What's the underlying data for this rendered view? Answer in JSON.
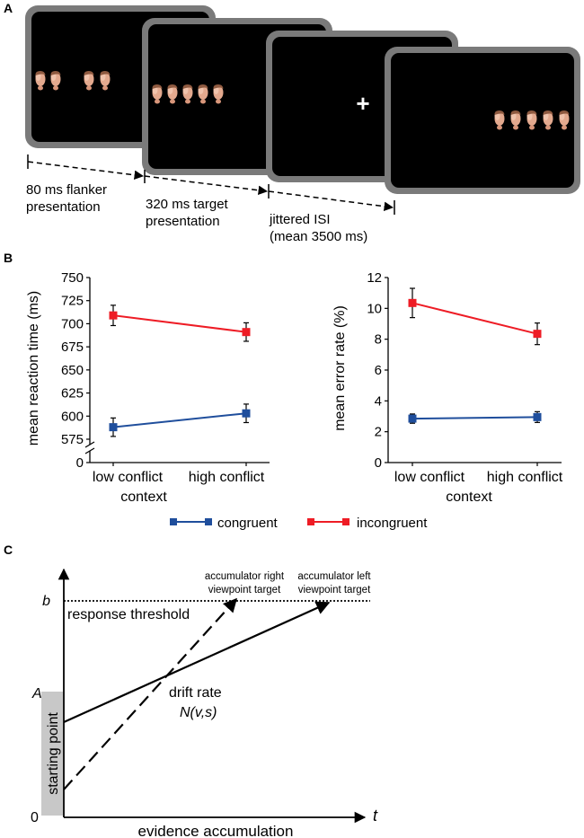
{
  "panels": {
    "a": {
      "letter": "A"
    },
    "b": {
      "letter": "B"
    },
    "c": {
      "letter": "C"
    }
  },
  "paradigm": {
    "fixation_cross": "+",
    "timeline_labels": [
      [
        "80 ms flanker",
        "presentation"
      ],
      [
        "320 ms target",
        "presentation"
      ],
      [
        "jittered ISI",
        "(mean 3500 ms)"
      ]
    ],
    "screen_color": "#000000",
    "screen_frame_color": "#7a7a7a"
  },
  "chart_data": [
    {
      "type": "line",
      "categories": [
        "low conflict",
        "high conflict"
      ],
      "xlabel": "context",
      "ylabel": "mean reaction time (ms)",
      "ylim": [
        575,
        750
      ],
      "axis_break": true,
      "yticks": [
        0,
        575,
        600,
        625,
        650,
        675,
        700,
        725,
        750
      ],
      "series": [
        {
          "name": "congruent",
          "values": [
            588,
            603
          ],
          "errors": [
            10,
            10
          ],
          "color": "#1f4e9c"
        },
        {
          "name": "incongruent",
          "values": [
            709,
            691
          ],
          "errors": [
            11,
            10
          ],
          "color": "#ee1c25"
        }
      ]
    },
    {
      "type": "line",
      "categories": [
        "low conflict",
        "high conflict"
      ],
      "xlabel": "context",
      "ylabel": "mean error rate (%)",
      "ylim": [
        0,
        12
      ],
      "yticks": [
        0,
        2,
        4,
        6,
        8,
        10,
        12
      ],
      "series": [
        {
          "name": "congruent",
          "values": [
            2.85,
            2.95
          ],
          "errors": [
            0.3,
            0.35
          ],
          "color": "#1f4e9c"
        },
        {
          "name": "incongruent",
          "values": [
            10.35,
            8.35
          ],
          "errors": [
            0.95,
            0.7
          ],
          "color": "#ee1c25"
        }
      ]
    }
  ],
  "legend": [
    {
      "label": "congruent",
      "color": "#1f4e9c"
    },
    {
      "label": "incongruent",
      "color": "#ee1c25"
    }
  ],
  "lba": {
    "b_label": "b",
    "a_label": "A",
    "zero_label": "0",
    "t_label": "t",
    "response_threshold": "response threshold",
    "acc_right": [
      "accumulator right",
      "viewpoint target"
    ],
    "acc_left": [
      "accumulator left",
      "viewpoint target"
    ],
    "drift_rate": "drift rate",
    "drift_dist": "N(v,s)",
    "starting_point": "starting point",
    "evidence": "evidence accumulation"
  }
}
